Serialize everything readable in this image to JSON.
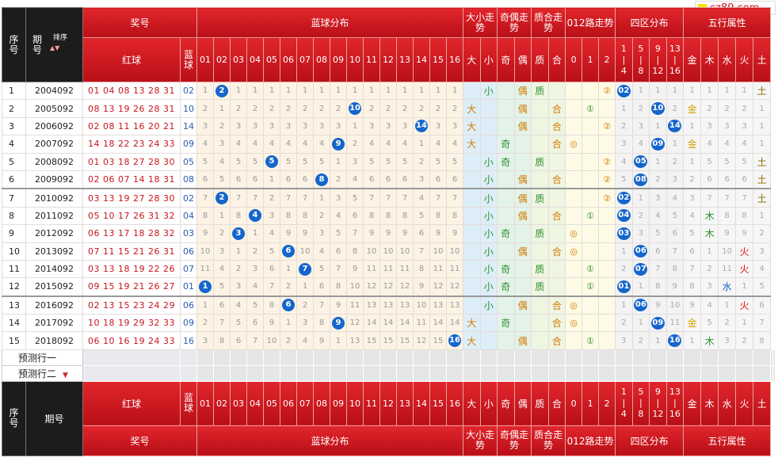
{
  "logo": {
    "text": "cz89.com"
  },
  "header": {
    "seq": "序号",
    "period": "期号",
    "sort_label": "排序",
    "prize": "奖号",
    "red": "红球",
    "blue": "蓝球",
    "blue_dist": "蓝球分布",
    "big_small": "大小走势",
    "odd_even": "奇偶走势",
    "prime_comp": "质合走势",
    "route012": "012路走势",
    "zone4": "四区分布",
    "wuxing": "五行属性",
    "blue_nums": [
      "01",
      "02",
      "03",
      "04",
      "05",
      "06",
      "07",
      "08",
      "09",
      "10",
      "11",
      "12",
      "13",
      "14",
      "15",
      "16"
    ],
    "bs_labels": [
      "大",
      "小"
    ],
    "oe_labels": [
      "奇",
      "偶"
    ],
    "pc_labels": [
      "质",
      "合"
    ],
    "r_labels": [
      "0",
      "1",
      "2"
    ],
    "zone_labels": [
      [
        "1",
        "|",
        "4"
      ],
      [
        "5",
        "|",
        "8"
      ],
      [
        "9",
        "|",
        "12"
      ],
      [
        "13",
        "|",
        "16"
      ]
    ],
    "wx_labels": [
      "金",
      "木",
      "水",
      "火",
      "土"
    ]
  },
  "rows": [
    {
      "seq": "1",
      "period": "2004092",
      "red": "01 04 08 13 28 31",
      "blue": "02",
      "miss": [
        "1",
        "2",
        "1",
        "1",
        "1",
        "1",
        "1",
        "1",
        "1",
        "1",
        "1",
        "1",
        "1",
        "1",
        "1",
        "1"
      ],
      "hit": 1,
      "bs": "小",
      "oe": "偶",
      "pc": "质",
      "r": "2",
      "rv": "②",
      "zone": [
        "02",
        "1",
        "1",
        "1"
      ],
      "zhit": 0,
      "wx": [
        "1",
        "1",
        "1",
        "1",
        "土"
      ],
      "wxhit": 4
    },
    {
      "seq": "2",
      "period": "2005092",
      "red": "08 13 19 26 28 31",
      "blue": "10",
      "miss": [
        "2",
        "1",
        "2",
        "2",
        "2",
        "2",
        "2",
        "2",
        "2",
        "10",
        "2",
        "2",
        "2",
        "2",
        "2",
        "2"
      ],
      "hit": 9,
      "bs": "大",
      "oe": "偶",
      "pc": "合",
      "r": "1",
      "rv": "①",
      "zone": [
        "1",
        "2",
        "10",
        "2"
      ],
      "zhit": 2,
      "wx": [
        "金",
        "2",
        "2",
        "2",
        "1"
      ],
      "wxhit": 0
    },
    {
      "seq": "3",
      "period": "2006092",
      "red": "02 08 11 16 20 21",
      "blue": "14",
      "miss": [
        "3",
        "2",
        "3",
        "3",
        "3",
        "3",
        "3",
        "3",
        "3",
        "1",
        "3",
        "3",
        "3",
        "14",
        "3",
        "3"
      ],
      "hit": 13,
      "bs": "大",
      "oe": "偶",
      "pc": "合",
      "r": "2",
      "rv": "②",
      "zone": [
        "2",
        "3",
        "1",
        "14"
      ],
      "zhit": 3,
      "wx": [
        "1",
        "3",
        "3",
        "3",
        "1"
      ],
      "wxhit": -1
    },
    {
      "seq": "4",
      "period": "2007092",
      "red": "14 18 22 23 24 33",
      "blue": "09",
      "miss": [
        "4",
        "3",
        "4",
        "4",
        "4",
        "4",
        "4",
        "4",
        "9",
        "2",
        "4",
        "4",
        "4",
        "1",
        "4",
        "4"
      ],
      "hit": 8,
      "bs": "大",
      "oe": "奇",
      "pc": "合",
      "r": "0",
      "rv": "◎",
      "zone": [
        "3",
        "4",
        "09",
        "1"
      ],
      "zhit": 2,
      "wx": [
        "金",
        "4",
        "4",
        "4",
        "1"
      ],
      "wxhit": 0
    },
    {
      "seq": "5",
      "period": "2008092",
      "red": "01 03 18 27 28 30",
      "blue": "05",
      "miss": [
        "5",
        "4",
        "5",
        "5",
        "5",
        "5",
        "5",
        "5",
        "1",
        "3",
        "5",
        "5",
        "5",
        "2",
        "5",
        "5"
      ],
      "hit": 4,
      "bs": "小",
      "oe": "奇",
      "pc": "质",
      "r": "2",
      "rv": "②",
      "zone": [
        "4",
        "05",
        "1",
        "2"
      ],
      "zhit": 1,
      "wx": [
        "1",
        "5",
        "5",
        "5",
        "土"
      ],
      "wxhit": 4
    },
    {
      "seq": "6",
      "period": "2009092",
      "red": "02 06 07 14 18 31",
      "blue": "08",
      "miss": [
        "6",
        "5",
        "6",
        "6",
        "1",
        "6",
        "6",
        "8",
        "2",
        "4",
        "6",
        "6",
        "6",
        "3",
        "6",
        "6"
      ],
      "hit": 7,
      "bs": "小",
      "oe": "偶",
      "pc": "合",
      "r": "2",
      "rv": "②",
      "zone": [
        "5",
        "08",
        "2",
        "3"
      ],
      "zhit": 1,
      "wx": [
        "2",
        "6",
        "6",
        "6",
        "土"
      ],
      "wxhit": 4
    },
    {
      "seq": "7",
      "period": "2010092",
      "red": "03 13 19 27 28 30",
      "blue": "02",
      "miss": [
        "7",
        "2",
        "7",
        "7",
        "2",
        "7",
        "7",
        "1",
        "3",
        "5",
        "7",
        "7",
        "7",
        "4",
        "7",
        "7"
      ],
      "hit": 1,
      "bs": "小",
      "oe": "偶",
      "pc": "质",
      "r": "2",
      "rv": "②",
      "zone": [
        "02",
        "1",
        "3",
        "4"
      ],
      "zhit": 0,
      "wx": [
        "3",
        "7",
        "7",
        "7",
        "土"
      ],
      "wxhit": 4
    },
    {
      "seq": "8",
      "period": "2011092",
      "red": "05 10 17 26 31 32",
      "blue": "04",
      "miss": [
        "8",
        "1",
        "8",
        "4",
        "3",
        "8",
        "8",
        "2",
        "4",
        "6",
        "8",
        "8",
        "8",
        "5",
        "8",
        "8"
      ],
      "hit": 3,
      "bs": "小",
      "oe": "偶",
      "pc": "合",
      "r": "1",
      "rv": "①",
      "zone": [
        "04",
        "2",
        "4",
        "5"
      ],
      "zhit": 0,
      "wx": [
        "4",
        "木",
        "8",
        "8",
        "1"
      ],
      "wxhit": 1
    },
    {
      "seq": "9",
      "period": "2012092",
      "red": "06 13 17 18 28 32",
      "blue": "03",
      "miss": [
        "9",
        "2",
        "3",
        "1",
        "4",
        "9",
        "9",
        "3",
        "5",
        "7",
        "9",
        "9",
        "9",
        "6",
        "9",
        "9"
      ],
      "hit": 2,
      "bs": "小",
      "oe": "奇",
      "pc": "质",
      "r": "0",
      "rv": "◎",
      "zone": [
        "03",
        "3",
        "5",
        "6"
      ],
      "zhit": 0,
      "wx": [
        "5",
        "木",
        "9",
        "9",
        "2"
      ],
      "wxhit": 1
    },
    {
      "seq": "10",
      "period": "2013092",
      "red": "07 11 15 21 26 31",
      "blue": "06",
      "miss": [
        "10",
        "3",
        "1",
        "2",
        "5",
        "6",
        "10",
        "4",
        "6",
        "8",
        "10",
        "10",
        "10",
        "7",
        "10",
        "10"
      ],
      "hit": 5,
      "bs": "小",
      "oe": "偶",
      "pc": "合",
      "r": "0",
      "rv": "◎",
      "zone": [
        "1",
        "06",
        "6",
        "7"
      ],
      "zhit": 1,
      "wx": [
        "6",
        "1",
        "10",
        "火",
        "3"
      ],
      "wxhit": 3
    },
    {
      "seq": "11",
      "period": "2014092",
      "red": "03 13 18 19 22 26",
      "blue": "07",
      "miss": [
        "11",
        "4",
        "2",
        "3",
        "6",
        "1",
        "7",
        "5",
        "7",
        "9",
        "11",
        "11",
        "11",
        "8",
        "11",
        "11"
      ],
      "hit": 6,
      "bs": "小",
      "oe": "奇",
      "pc": "质",
      "r": "1",
      "rv": "①",
      "zone": [
        "2",
        "07",
        "7",
        "8"
      ],
      "zhit": 1,
      "wx": [
        "7",
        "2",
        "11",
        "火",
        "4"
      ],
      "wxhit": 3
    },
    {
      "seq": "12",
      "period": "2015092",
      "red": "09 15 19 21 26 27",
      "blue": "01",
      "miss": [
        "1",
        "5",
        "3",
        "4",
        "7",
        "2",
        "1",
        "6",
        "8",
        "10",
        "12",
        "12",
        "12",
        "9",
        "12",
        "12"
      ],
      "hit": 0,
      "bs": "小",
      "oe": "奇",
      "pc": "质",
      "r": "1",
      "rv": "①",
      "zone": [
        "01",
        "1",
        "8",
        "9"
      ],
      "zhit": 0,
      "wx": [
        "8",
        "3",
        "水",
        "1",
        "5"
      ],
      "wxhit": 2
    },
    {
      "seq": "13",
      "period": "2016092",
      "red": "02 13 15 23 24 29",
      "blue": "06",
      "miss": [
        "1",
        "6",
        "4",
        "5",
        "8",
        "6",
        "2",
        "7",
        "9",
        "11",
        "13",
        "13",
        "13",
        "10",
        "13",
        "13"
      ],
      "hit": 5,
      "bs": "小",
      "oe": "偶",
      "pc": "合",
      "r": "0",
      "rv": "◎",
      "zone": [
        "1",
        "06",
        "9",
        "10"
      ],
      "zhit": 1,
      "wx": [
        "9",
        "4",
        "1",
        "火",
        "6"
      ],
      "wxhit": 3
    },
    {
      "seq": "14",
      "period": "2017092",
      "red": "10 18 19 29 32 33",
      "blue": "09",
      "miss": [
        "2",
        "7",
        "5",
        "6",
        "9",
        "1",
        "3",
        "8",
        "9",
        "12",
        "14",
        "14",
        "14",
        "11",
        "14",
        "14"
      ],
      "hit": 8,
      "bs": "大",
      "oe": "奇",
      "pc": "合",
      "r": "0",
      "rv": "◎",
      "zone": [
        "2",
        "1",
        "09",
        "11"
      ],
      "zhit": 2,
      "wx": [
        "金",
        "5",
        "2",
        "1",
        "7"
      ],
      "wxhit": 0
    },
    {
      "seq": "15",
      "period": "2018092",
      "red": "06 10 16 19 24 33",
      "blue": "16",
      "miss": [
        "3",
        "8",
        "6",
        "7",
        "10",
        "2",
        "4",
        "9",
        "1",
        "13",
        "15",
        "15",
        "15",
        "12",
        "15",
        "16"
      ],
      "hit": 15,
      "bs": "大",
      "oe": "偶",
      "pc": "合",
      "r": "1",
      "rv": "①",
      "zone": [
        "3",
        "2",
        "1",
        "16"
      ],
      "zhit": 3,
      "wx": [
        "1",
        "木",
        "3",
        "2",
        "8"
      ],
      "wxhit": 1
    }
  ],
  "predict": {
    "row1": "预测行一",
    "row2": "预测行二"
  }
}
